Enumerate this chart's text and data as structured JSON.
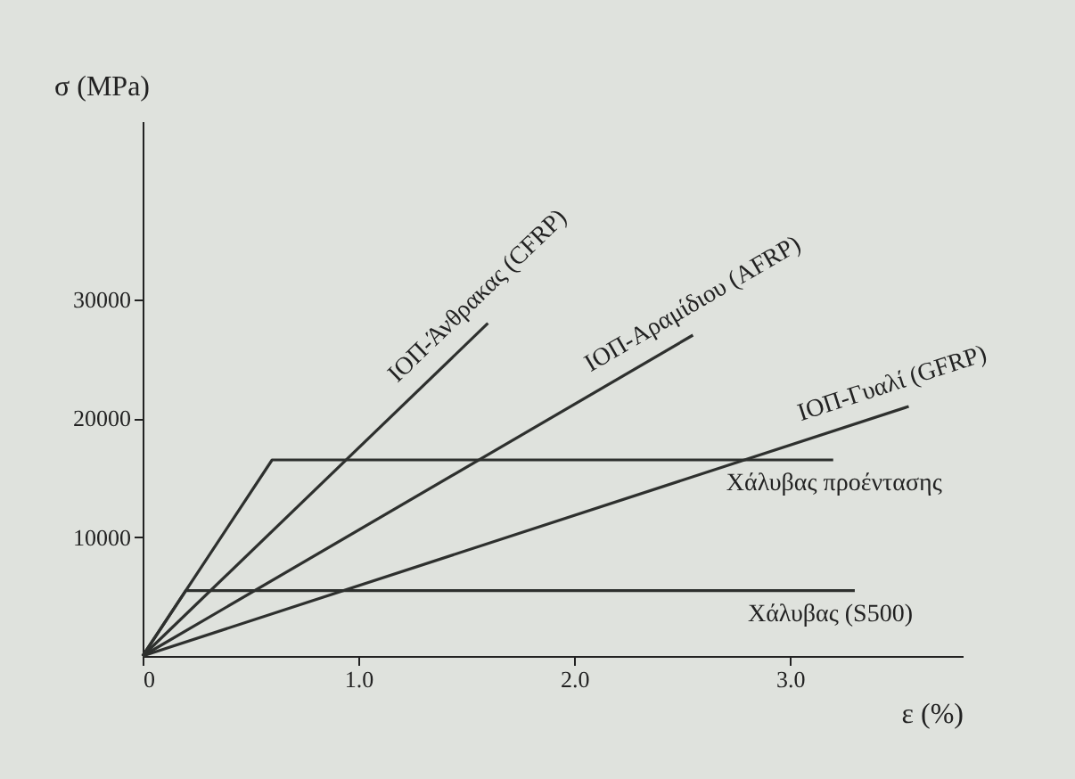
{
  "chart_data": {
    "type": "line",
    "xlabel": "ε (%)",
    "ylabel": "σ (MPa)",
    "xlim": [
      0,
      3.8
    ],
    "ylim": [
      0,
      45000
    ],
    "xticks": [
      {
        "value": 0,
        "label": "0"
      },
      {
        "value": 1,
        "label": "1.0"
      },
      {
        "value": 2,
        "label": "2.0"
      },
      {
        "value": 3,
        "label": "3.0"
      }
    ],
    "yticks": [
      10000,
      20000,
      30000
    ],
    "legend": false,
    "marker": "none",
    "line_style": "solid",
    "series": [
      {
        "name": "ΙΟΠ-Άνθρακας (CFRP)",
        "color": "#2e302e",
        "x": [
          0,
          1.6
        ],
        "values": [
          0,
          28000
        ]
      },
      {
        "name": "ΙΟΠ-Αραμίδιου (AFRP)",
        "color": "#2e302e",
        "x": [
          0,
          2.55
        ],
        "values": [
          0,
          27000
        ]
      },
      {
        "name": "ΙΟΠ-Γυαλί (GFRP)",
        "color": "#2e302e",
        "x": [
          0,
          3.55
        ],
        "values": [
          0,
          21000
        ]
      },
      {
        "name": "Χάλυβας προέντασης",
        "color": "#2e302e",
        "x": [
          0,
          0.6,
          3.2
        ],
        "values": [
          0,
          16500,
          16500
        ]
      },
      {
        "name": "Χάλυβας (S500)",
        "color": "#2e302e",
        "x": [
          0,
          0.2,
          3.3
        ],
        "values": [
          0,
          5500,
          5500
        ]
      }
    ]
  }
}
